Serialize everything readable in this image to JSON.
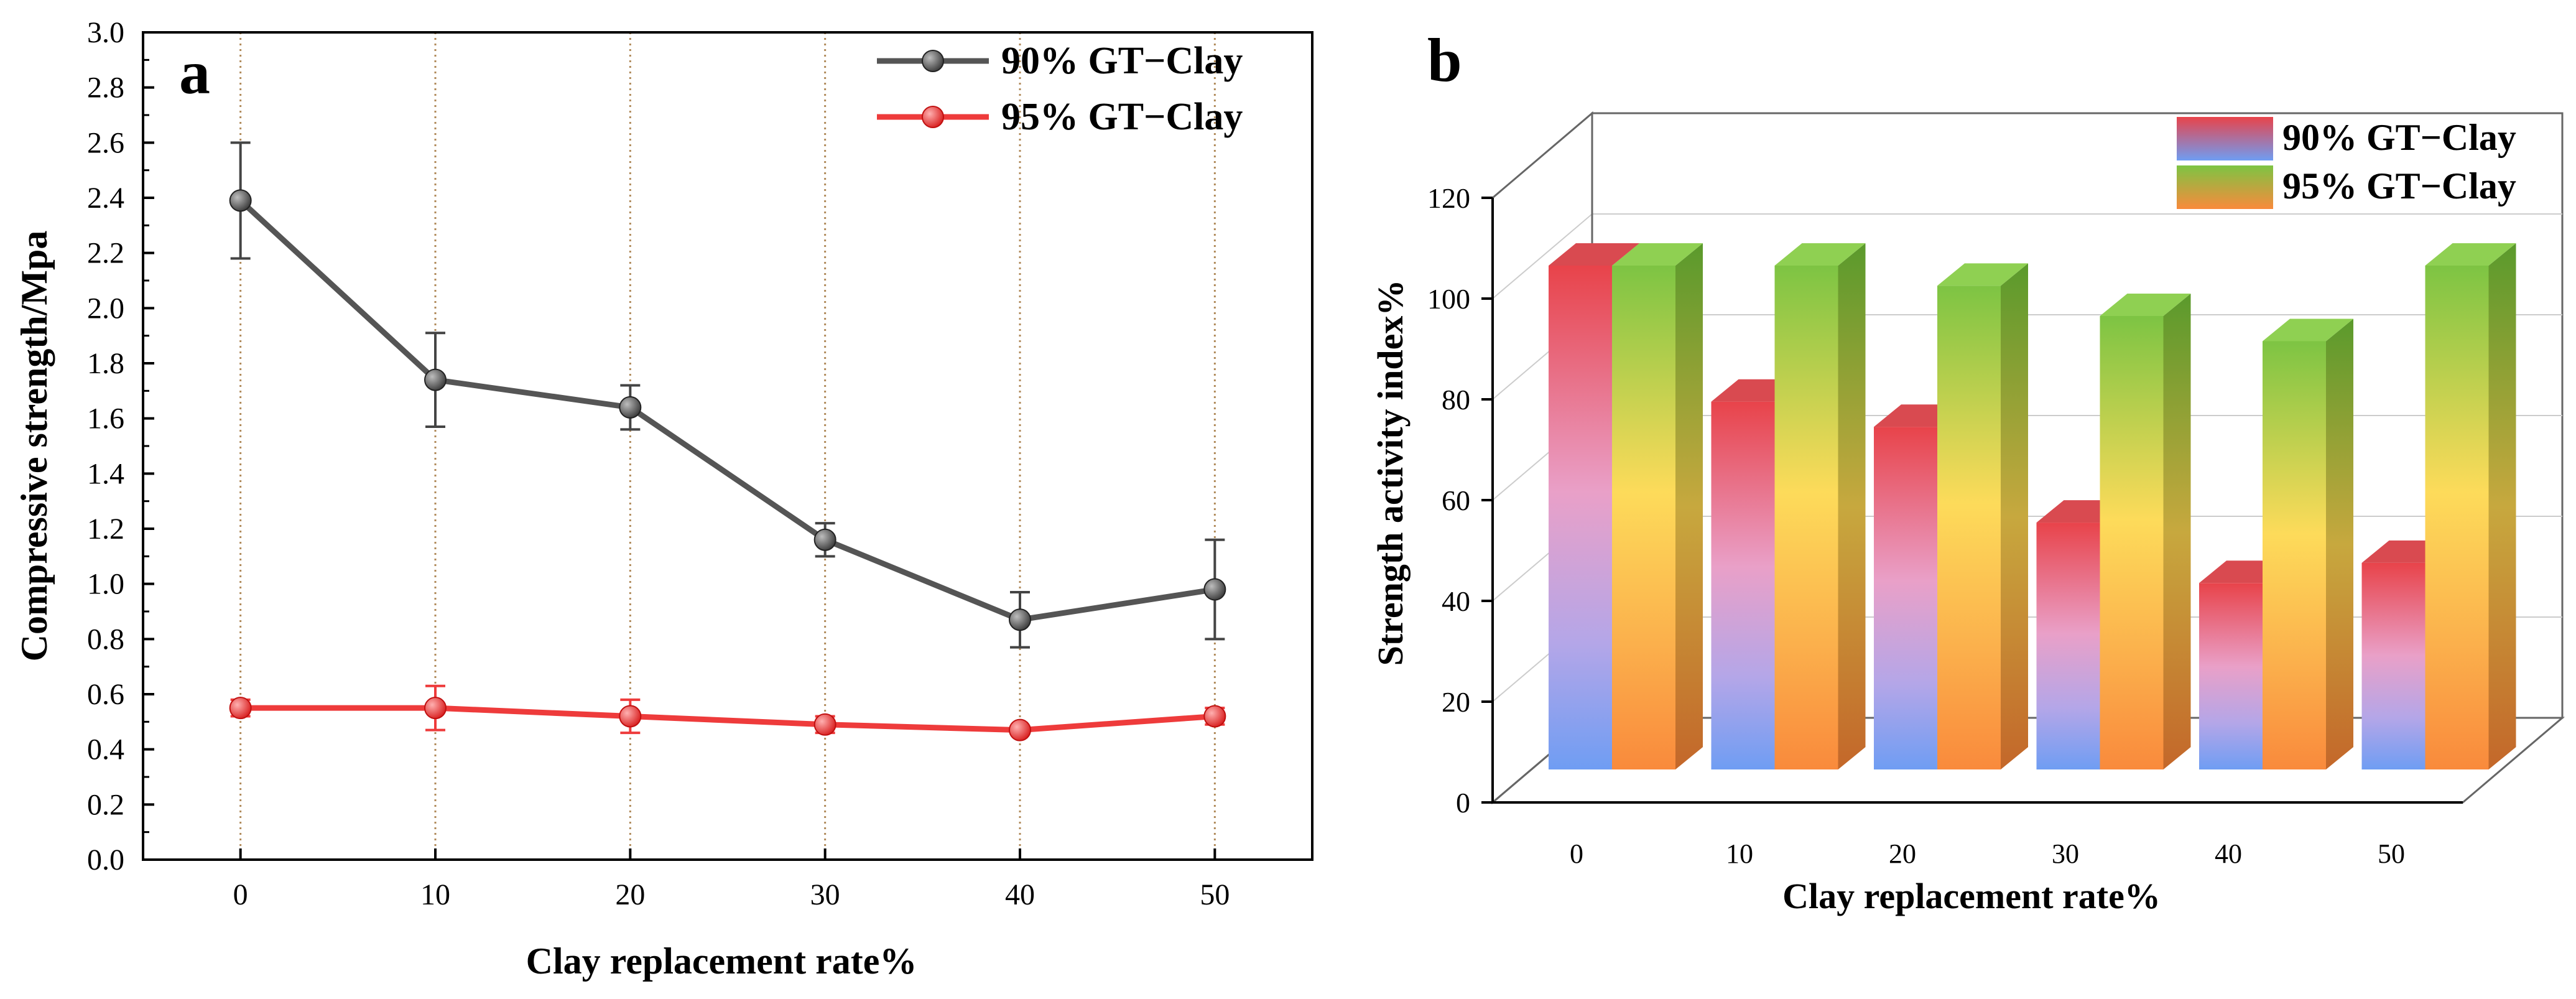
{
  "chart_data": [
    {
      "panel_label": "a",
      "type": "line",
      "title": "",
      "xlabel": "Clay replacement rate%",
      "ylabel": "Compressive strength/Mpa",
      "x": [
        0,
        10,
        20,
        30,
        40,
        50
      ],
      "x_tick_labels": [
        "0",
        "10",
        "20",
        "30",
        "40",
        "50"
      ],
      "xlim": [
        -5,
        55
      ],
      "ylim": [
        0,
        3.0
      ],
      "y_tick_labels": [
        "0.0",
        "0.2",
        "0.4",
        "0.6",
        "0.8",
        "1.0",
        "1.2",
        "1.4",
        "1.6",
        "1.8",
        "2.0",
        "2.2",
        "2.4",
        "2.6",
        "2.8",
        "3.0"
      ],
      "vertical_gridlines": true,
      "legend_position": "top-right",
      "series": [
        {
          "name": "90% GT−Clay",
          "color": "#555555",
          "values": [
            2.39,
            1.74,
            1.64,
            1.16,
            0.87,
            0.98
          ],
          "errors": [
            0.21,
            0.17,
            0.08,
            0.06,
            0.1,
            0.18
          ]
        },
        {
          "name": "95% GT−Clay",
          "color": "#ee3b3b",
          "values": [
            0.55,
            0.55,
            0.52,
            0.49,
            0.47,
            0.52
          ],
          "errors": [
            0.03,
            0.08,
            0.06,
            0.03,
            0.01,
            0.03
          ]
        }
      ]
    },
    {
      "panel_label": "b",
      "type": "bar",
      "title": "",
      "xlabel": "Clay replacement rate%",
      "ylabel": "Strength activity index%",
      "categories": [
        "0",
        "10",
        "20",
        "30",
        "40",
        "50"
      ],
      "ylim": [
        0,
        120
      ],
      "y_tick_labels": [
        "0",
        "20",
        "40",
        "60",
        "80",
        "100",
        "120"
      ],
      "legend_position": "top-right",
      "series": [
        {
          "name": "90% GT−Clay",
          "values": [
            100,
            73,
            68,
            49,
            37,
            41
          ]
        },
        {
          "name": "95% GT−Clay",
          "values": [
            100,
            100,
            96,
            90,
            85,
            100
          ]
        }
      ]
    }
  ]
}
